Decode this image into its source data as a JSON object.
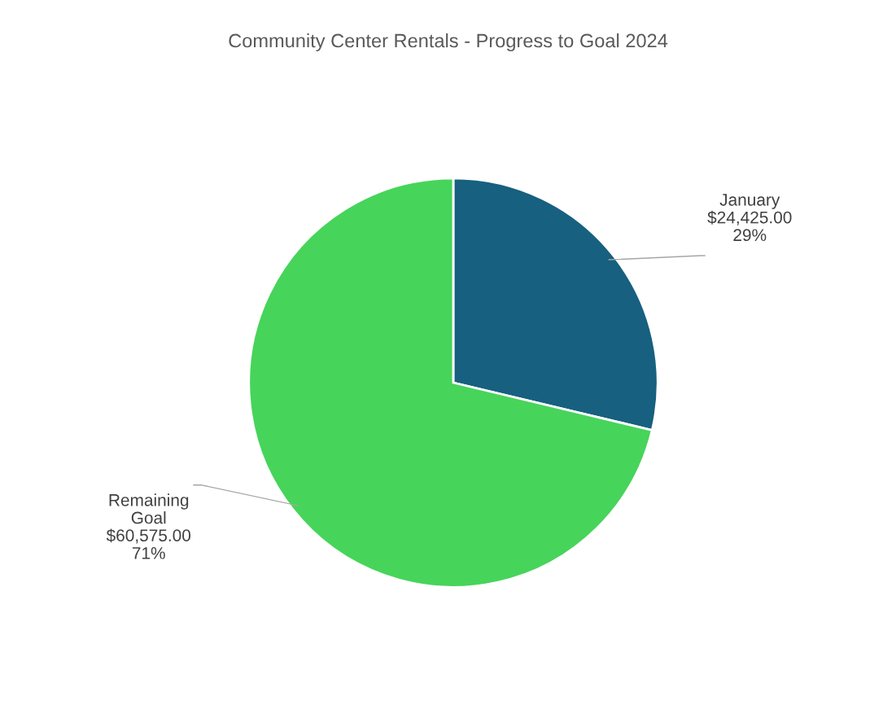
{
  "chart_data": {
    "type": "pie",
    "title": "Community Center Rentals - Progress to Goal 2024",
    "categories": [
      "January",
      "Remaining\nGoal"
    ],
    "values": [
      24425,
      60575
    ],
    "colors": [
      "#17607f",
      "#47d45a"
    ],
    "value_labels": [
      "$24,425.00\n29%",
      "$60,575.00\n71%"
    ],
    "legend": false
  }
}
